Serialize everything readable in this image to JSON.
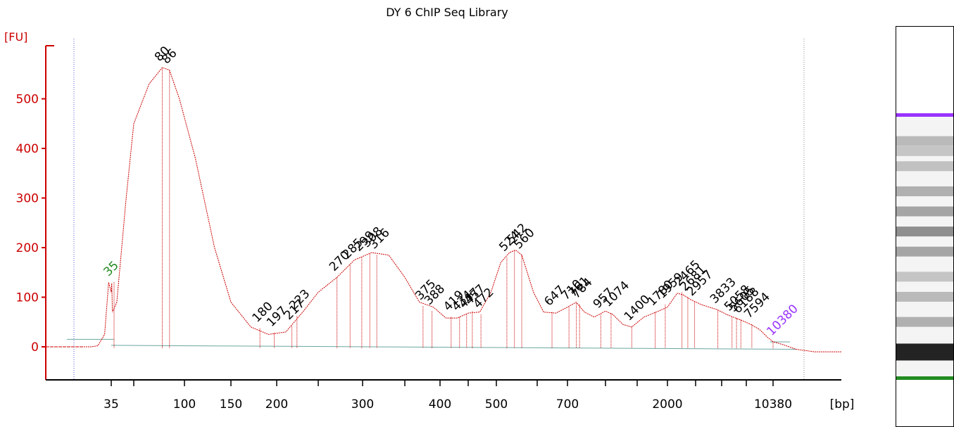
{
  "chart_data": {
    "type": "line",
    "title": "DY 6 ChIP Seq Library",
    "ylabel": "[FU]",
    "xlabel": "[bp]",
    "ylim": [
      -70,
      630
    ],
    "y_ticks": [
      0,
      100,
      200,
      300,
      400,
      500
    ],
    "x_ticks": [
      {
        "label": "35",
        "pos": 35
      },
      {
        "label": "",
        "pos": 60
      },
      {
        "label": "100",
        "pos": 100
      },
      {
        "label": "150",
        "pos": 150
      },
      {
        "label": "200",
        "pos": 200
      },
      {
        "label": "",
        "pos": 250
      },
      {
        "label": "300",
        "pos": 300
      },
      {
        "label": "",
        "pos": 350
      },
      {
        "label": "400",
        "pos": 400
      },
      {
        "label": "",
        "pos": 450
      },
      {
        "label": "500",
        "pos": 500
      },
      {
        "label": "",
        "pos": 600
      },
      {
        "label": "700",
        "pos": 700
      },
      {
        "label": "",
        "pos": 1000
      },
      {
        "label": "",
        "pos": 1500
      },
      {
        "label": "2000",
        "pos": 2000
      },
      {
        "label": "",
        "pos": 3000
      },
      {
        "label": "",
        "pos": 4000
      },
      {
        "label": "",
        "pos": 7000
      },
      {
        "label": "10380",
        "pos": 10380
      }
    ],
    "markers": {
      "lower": {
        "label": "35",
        "bp": 35,
        "fu": 130,
        "color": "#228b22"
      },
      "upper": {
        "label": "10380",
        "bp": 10380,
        "fu": 10,
        "color": "#9933ff"
      }
    },
    "peaks": [
      {
        "label": "80",
        "bp": 80,
        "fu": 563
      },
      {
        "label": "86",
        "bp": 86,
        "fu": 558
      },
      {
        "label": "180",
        "bp": 180,
        "fu": 37
      },
      {
        "label": "197",
        "bp": 197,
        "fu": 28
      },
      {
        "label": "217",
        "bp": 217,
        "fu": 42
      },
      {
        "label": "223",
        "bp": 223,
        "fu": 62
      },
      {
        "label": "270",
        "bp": 270,
        "fu": 140
      },
      {
        "label": "285",
        "bp": 285,
        "fu": 165
      },
      {
        "label": "299",
        "bp": 299,
        "fu": 180
      },
      {
        "label": "308",
        "bp": 308,
        "fu": 188
      },
      {
        "label": "316",
        "bp": 316,
        "fu": 185
      },
      {
        "label": "375",
        "bp": 375,
        "fu": 82
      },
      {
        "label": "388",
        "bp": 388,
        "fu": 72
      },
      {
        "label": "419",
        "bp": 419,
        "fu": 60
      },
      {
        "label": "434",
        "bp": 434,
        "fu": 60
      },
      {
        "label": "447",
        "bp": 447,
        "fu": 65
      },
      {
        "label": "457",
        "bp": 457,
        "fu": 72
      },
      {
        "label": "472",
        "bp": 472,
        "fu": 65
      },
      {
        "label": "524",
        "bp": 524,
        "fu": 180
      },
      {
        "label": "542",
        "bp": 542,
        "fu": 195
      },
      {
        "label": "560",
        "bp": 560,
        "fu": 185
      },
      {
        "label": "647",
        "bp": 647,
        "fu": 70
      },
      {
        "label": "710",
        "bp": 710,
        "fu": 82
      },
      {
        "label": "761",
        "bp": 761,
        "fu": 88
      },
      {
        "label": "784",
        "bp": 784,
        "fu": 85
      },
      {
        "label": "957",
        "bp": 957,
        "fu": 65
      },
      {
        "label": "1074",
        "bp": 1074,
        "fu": 68
      },
      {
        "label": "1400",
        "bp": 1400,
        "fu": 40
      },
      {
        "label": "1780",
        "bp": 1780,
        "fu": 70
      },
      {
        "label": "1959",
        "bp": 1959,
        "fu": 85
      },
      {
        "label": "2465",
        "bp": 2465,
        "fu": 110
      },
      {
        "label": "2681",
        "bp": 2681,
        "fu": 100
      },
      {
        "label": "2957",
        "bp": 2957,
        "fu": 90
      },
      {
        "label": "3833",
        "bp": 3833,
        "fu": 75
      },
      {
        "label": "5058",
        "bp": 5058,
        "fu": 60
      },
      {
        "label": "5605",
        "bp": 5605,
        "fu": 58
      },
      {
        "label": "6188",
        "bp": 6188,
        "fu": 55
      },
      {
        "label": "7594",
        "bp": 7594,
        "fu": 45
      }
    ],
    "trace": [
      [
        32,
        0
      ],
      [
        33,
        2
      ],
      [
        34,
        25
      ],
      [
        34.6,
        130
      ],
      [
        35,
        110
      ],
      [
        35.4,
        128
      ],
      [
        36,
        70
      ],
      [
        40,
        90
      ],
      [
        50,
        300
      ],
      [
        60,
        450
      ],
      [
        70,
        530
      ],
      [
        80,
        563
      ],
      [
        86,
        558
      ],
      [
        95,
        500
      ],
      [
        110,
        380
      ],
      [
        130,
        200
      ],
      [
        150,
        90
      ],
      [
        170,
        40
      ],
      [
        190,
        25
      ],
      [
        210,
        30
      ],
      [
        230,
        70
      ],
      [
        250,
        110
      ],
      [
        270,
        140
      ],
      [
        290,
        175
      ],
      [
        310,
        190
      ],
      [
        330,
        185
      ],
      [
        350,
        140
      ],
      [
        370,
        90
      ],
      [
        390,
        80
      ],
      [
        410,
        58
      ],
      [
        430,
        58
      ],
      [
        450,
        68
      ],
      [
        470,
        70
      ],
      [
        490,
        110
      ],
      [
        510,
        170
      ],
      [
        530,
        190
      ],
      [
        545,
        195
      ],
      [
        560,
        185
      ],
      [
        590,
        110
      ],
      [
        620,
        70
      ],
      [
        660,
        68
      ],
      [
        700,
        80
      ],
      [
        760,
        90
      ],
      [
        820,
        70
      ],
      [
        900,
        60
      ],
      [
        1000,
        72
      ],
      [
        1100,
        65
      ],
      [
        1250,
        45
      ],
      [
        1400,
        40
      ],
      [
        1600,
        60
      ],
      [
        1800,
        70
      ],
      [
        2000,
        80
      ],
      [
        2300,
        108
      ],
      [
        2500,
        105
      ],
      [
        2800,
        95
      ],
      [
        3200,
        85
      ],
      [
        3800,
        75
      ],
      [
        4500,
        65
      ],
      [
        5500,
        58
      ],
      [
        6500,
        52
      ],
      [
        7500,
        45
      ],
      [
        8500,
        35
      ],
      [
        9500,
        20
      ],
      [
        10380,
        10
      ],
      [
        11000,
        5
      ],
      [
        12000,
        -5
      ],
      [
        13500,
        -10
      ],
      [
        16000,
        -10
      ]
    ],
    "baseline": [
      [
        35,
        3
      ],
      [
        12000,
        -5
      ]
    ],
    "grid": false,
    "legend": "none"
  },
  "gel": {
    "upper_marker_color": "#9933ff",
    "lower_marker_color": "#228b22",
    "bands": [
      {
        "pos": 0.08,
        "intensity": 0.25
      },
      {
        "pos": 0.12,
        "intensity": 0.2
      },
      {
        "pos": 0.18,
        "intensity": 0.22
      },
      {
        "pos": 0.28,
        "intensity": 0.3
      },
      {
        "pos": 0.36,
        "intensity": 0.35
      },
      {
        "pos": 0.44,
        "intensity": 0.45
      },
      {
        "pos": 0.52,
        "intensity": 0.35
      },
      {
        "pos": 0.62,
        "intensity": 0.2
      },
      {
        "pos": 0.7,
        "intensity": 0.25
      },
      {
        "pos": 0.8,
        "intensity": 0.3
      },
      {
        "pos": 0.92,
        "intensity": 0.95
      }
    ]
  }
}
